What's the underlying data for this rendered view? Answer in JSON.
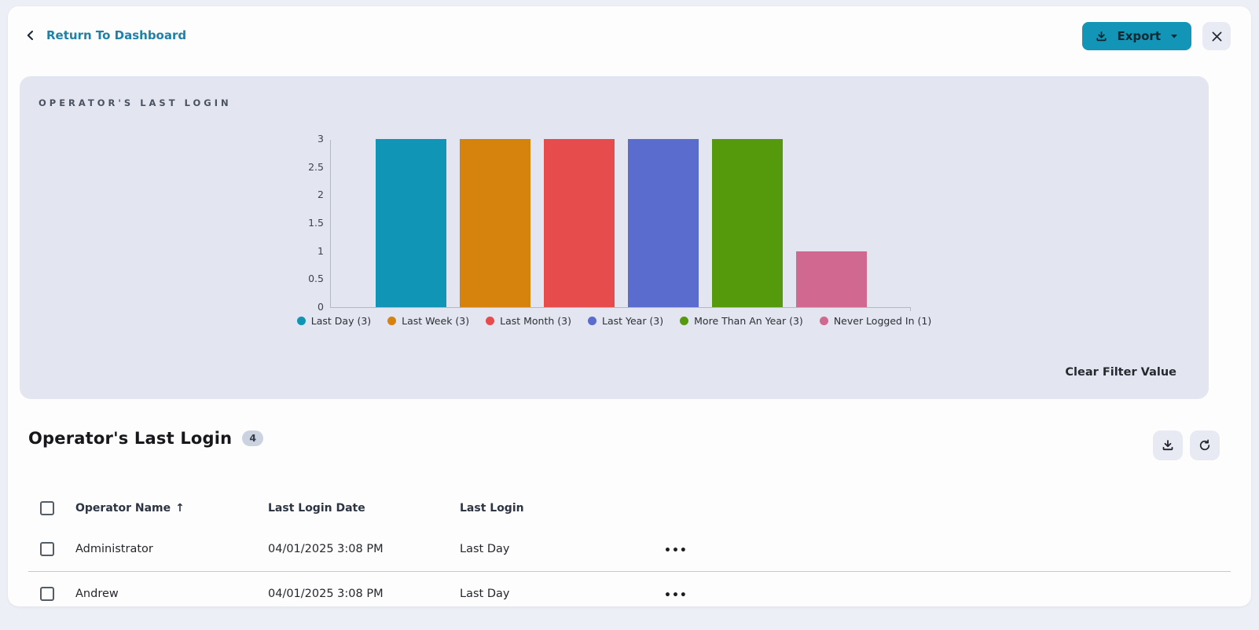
{
  "header": {
    "back_label": "Return To Dashboard",
    "export_label": "Export"
  },
  "chart_panel": {
    "title": "OPERATOR'S LAST LOGIN",
    "clear_filter_label": "Clear Filter Value"
  },
  "chart_data": {
    "type": "bar",
    "title": "Operator's Last Login",
    "categories": [
      "Last Day",
      "Last Week",
      "Last Month",
      "Last Year",
      "More Than An Year",
      "Never Logged In"
    ],
    "values": [
      3,
      3,
      3,
      3,
      3,
      1
    ],
    "colors": [
      "#1095b7",
      "#d5830d",
      "#e74c4c",
      "#5a6ccd",
      "#55990c",
      "#d0688f"
    ],
    "legend": [
      "Last Day (3)",
      "Last Week (3)",
      "Last Month (3)",
      "Last Year (3)",
      "More Than An Year (3)",
      "Never Logged In (1)"
    ],
    "legend_position": "bottom",
    "grid": false,
    "xlabel": "",
    "ylabel": "",
    "ylim": [
      0,
      3
    ],
    "yticks": [
      0,
      0.5,
      1,
      1.5,
      2,
      2.5,
      3
    ]
  },
  "table_section": {
    "title": "Operator's Last Login",
    "count_badge": "4",
    "columns": [
      "Operator Name",
      "Last Login Date",
      "Last Login"
    ],
    "sort": {
      "column": "Operator Name",
      "direction": "ascending"
    },
    "rows": [
      {
        "operator_name": "Administrator",
        "last_login_date": "04/01/2025 3:08 PM",
        "last_login": "Last Day"
      },
      {
        "operator_name": "Andrew",
        "last_login_date": "04/01/2025 3:08 PM",
        "last_login": "Last Day"
      }
    ]
  },
  "icons": {
    "back_chevron_icon": "chevron-left",
    "export_download_icon": "download-tray",
    "export_caret_icon": "caret-down",
    "close_icon": "x-mark",
    "table_download_icon": "download-tray",
    "table_refresh_icon": "refresh-arrow",
    "sort_ascending_icon": "↑",
    "more_options_icon": "•••"
  },
  "colors": {
    "accent_teal": "#1295b6",
    "link_teal": "#1e81a8",
    "page_background": "#edeff6",
    "card_background": "#fdfdfe",
    "panel_background": "#e3e6f0",
    "divider": "#c3c9d6",
    "badge_background": "#ccd3e0"
  }
}
